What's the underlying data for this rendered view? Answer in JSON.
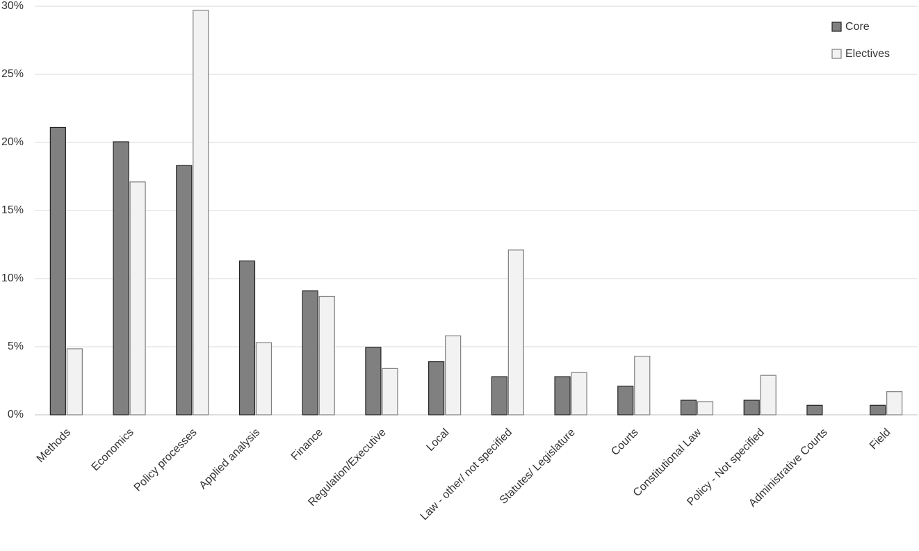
{
  "chart_data": {
    "type": "bar",
    "categories": [
      "Methods",
      "Economics",
      "Policy processes",
      "Applied analysis",
      "Finance",
      "Regulation/Executive",
      "Local",
      "Law - other/ not specified",
      "Statutes/ Legislature",
      "Courts",
      "Constitutional Law",
      "Policy - Not specified",
      "Administrative Courts",
      "Field"
    ],
    "series": [
      {
        "name": "Core",
        "color": "#808080",
        "values": [
          21.1,
          20.05,
          18.3,
          11.3,
          9.1,
          4.95,
          3.9,
          2.8,
          2.8,
          2.1,
          1.07,
          1.07,
          0.7,
          0.7
        ]
      },
      {
        "name": "Electives",
        "color": "#f2f2f2",
        "values": [
          4.85,
          17.1,
          29.7,
          5.3,
          8.7,
          3.4,
          5.8,
          12.1,
          3.1,
          4.3,
          0.97,
          2.9,
          0,
          1.7
        ]
      }
    ],
    "ylim": [
      0,
      30
    ],
    "yticks": [
      {
        "value": 0,
        "label": "0%"
      },
      {
        "value": 5,
        "label": "5%"
      },
      {
        "value": 10,
        "label": "10%"
      },
      {
        "value": 15,
        "label": "15%"
      },
      {
        "value": 20,
        "label": "20%"
      },
      {
        "value": 25,
        "label": "25%"
      },
      {
        "value": 30,
        "label": "30%"
      }
    ],
    "grid": true,
    "legend": "top-right"
  }
}
